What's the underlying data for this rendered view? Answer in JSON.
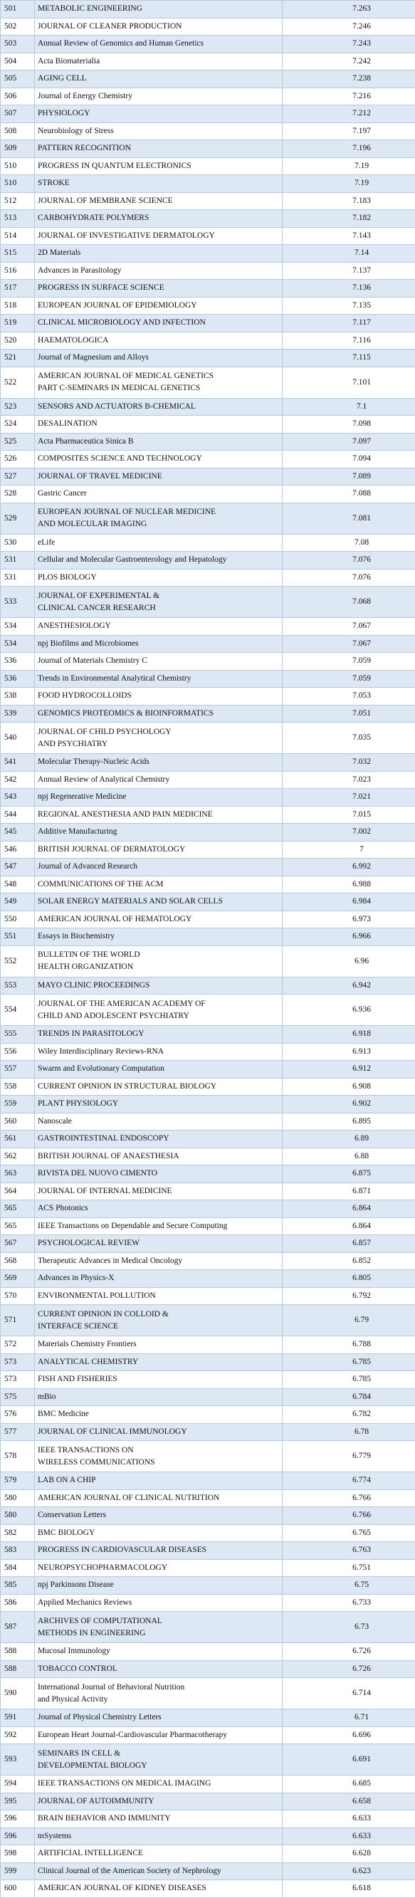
{
  "table": {
    "rows": [
      [
        501,
        "METABOLIC ENGINEERING",
        7.263
      ],
      [
        502,
        "JOURNAL OF CLEANER PRODUCTION",
        7.246
      ],
      [
        503,
        "Annual Review of Genomics and Human Genetics",
        7.243
      ],
      [
        504,
        "Acta Biomaterialia",
        7.242
      ],
      [
        505,
        "AGING CELL",
        7.238
      ],
      [
        506,
        "Journal of Energy Chemistry",
        7.216
      ],
      [
        507,
        "PHYSIOLOGY",
        7.212
      ],
      [
        508,
        "Neurobiology of Stress",
        7.197
      ],
      [
        509,
        "PATTERN RECOGNITION",
        7.196
      ],
      [
        510,
        "PROGRESS IN QUANTUM ELECTRONICS",
        7.19
      ],
      [
        510,
        "STROKE",
        7.19
      ],
      [
        512,
        "JOURNAL OF MEMBRANE SCIENCE",
        7.183
      ],
      [
        513,
        "CARBOHYDRATE POLYMERS",
        7.182
      ],
      [
        514,
        "JOURNAL OF INVESTIGATIVE DERMATOLOGY",
        7.143
      ],
      [
        515,
        "2D Materials",
        7.14
      ],
      [
        516,
        "Advances in Parasitology",
        7.137
      ],
      [
        517,
        "PROGRESS IN SURFACE SCIENCE",
        7.136
      ],
      [
        518,
        "EUROPEAN JOURNAL OF EPIDEMIOLOGY",
        7.135
      ],
      [
        519,
        "CLINICAL MICROBIOLOGY AND INFECTION",
        7.117
      ],
      [
        520,
        "HAEMATOLOGICA",
        7.116
      ],
      [
        521,
        "Journal of Magnesium and Alloys",
        7.115
      ],
      [
        522,
        "AMERICAN JOURNAL OF MEDICAL GENETICS\nPART C-SEMINARS IN MEDICAL GENETICS",
        7.101
      ],
      [
        523,
        "SENSORS AND ACTUATORS B-CHEMICAL",
        7.1
      ],
      [
        524,
        "DESALINATION",
        7.098
      ],
      [
        525,
        "Acta Pharmaceutica Sinica B",
        7.097
      ],
      [
        526,
        "COMPOSITES SCIENCE AND TECHNOLOGY",
        7.094
      ],
      [
        527,
        "JOURNAL OF TRAVEL MEDICINE",
        7.089
      ],
      [
        528,
        "Gastric Cancer",
        7.088
      ],
      [
        529,
        "EUROPEAN JOURNAL OF NUCLEAR MEDICINE\nAND MOLECULAR IMAGING",
        7.081
      ],
      [
        530,
        "eLife",
        7.08
      ],
      [
        531,
        "Cellular and Molecular Gastroenterology and Hepatology",
        7.076
      ],
      [
        531,
        "PLOS BIOLOGY",
        7.076
      ],
      [
        533,
        "JOURNAL OF EXPERIMENTAL &\nCLINICAL CANCER RESEARCH",
        7.068
      ],
      [
        534,
        "ANESTHESIOLOGY",
        7.067
      ],
      [
        534,
        "npj Biofilms and Microbiomes",
        7.067
      ],
      [
        536,
        "Journal of Materials Chemistry C",
        7.059
      ],
      [
        536,
        "Trends in Environmental Analytical Chemistry",
        7.059
      ],
      [
        538,
        "FOOD HYDROCOLLOIDS",
        7.053
      ],
      [
        539,
        "GENOMICS PROTEOMICS & BIOINFORMATICS",
        7.051
      ],
      [
        540,
        "JOURNAL OF CHILD PSYCHOLOGY\nAND PSYCHIATRY",
        7.035
      ],
      [
        541,
        "Molecular Therapy-Nucleic Acids",
        7.032
      ],
      [
        542,
        "Annual Review of Analytical Chemistry",
        7.023
      ],
      [
        543,
        "npj Regenerative Medicine",
        7.021
      ],
      [
        544,
        "REGIONAL ANESTHESIA AND PAIN MEDICINE",
        7.015
      ],
      [
        545,
        "Additive Manufacturing",
        7.002
      ],
      [
        546,
        "BRITISH JOURNAL OF DERMATOLOGY",
        7
      ],
      [
        547,
        "Journal of Advanced Research",
        6.992
      ],
      [
        548,
        "COMMUNICATIONS OF THE ACM",
        6.988
      ],
      [
        549,
        "SOLAR ENERGY MATERIALS AND SOLAR CELLS",
        6.984
      ],
      [
        550,
        "AMERICAN JOURNAL OF HEMATOLOGY",
        6.973
      ],
      [
        551,
        "Essays in Biochemistry",
        6.966
      ],
      [
        552,
        "BULLETIN OF THE WORLD\nHEALTH ORGANIZATION",
        6.96
      ],
      [
        553,
        "MAYO CLINIC PROCEEDINGS",
        6.942
      ],
      [
        554,
        "JOURNAL OF THE AMERICAN ACADEMY OF\nCHILD AND ADOLESCENT PSYCHIATRY",
        6.936
      ],
      [
        555,
        "TRENDS IN PARASITOLOGY",
        6.918
      ],
      [
        556,
        "Wiley Interdisciplinary Reviews-RNA",
        6.913
      ],
      [
        557,
        "Swarm and Evolutionary Computation",
        6.912
      ],
      [
        558,
        "CURRENT OPINION IN STRUCTURAL BIOLOGY",
        6.908
      ],
      [
        559,
        "PLANT PHYSIOLOGY",
        6.902
      ],
      [
        560,
        "Nanoscale",
        6.895
      ],
      [
        561,
        "GASTROINTESTINAL ENDOSCOPY",
        6.89
      ],
      [
        562,
        "BRITISH JOURNAL OF ANAESTHESIA",
        6.88
      ],
      [
        563,
        "RIVISTA DEL NUOVO CIMENTO",
        6.875
      ],
      [
        564,
        "JOURNAL OF INTERNAL MEDICINE",
        6.871
      ],
      [
        565,
        "ACS Photonics",
        6.864
      ],
      [
        565,
        "IEEE Transactions on Dependable and Secure Computing",
        6.864
      ],
      [
        567,
        "PSYCHOLOGICAL REVIEW",
        6.857
      ],
      [
        568,
        "Therapeutic Advances in Medical Oncology",
        6.852
      ],
      [
        569,
        "Advances in Physics-X",
        6.805
      ],
      [
        570,
        "ENVIRONMENTAL POLLUTION",
        6.792
      ],
      [
        571,
        "CURRENT OPINION IN COLLOID &\nINTERFACE SCIENCE",
        6.79
      ],
      [
        572,
        "Materials Chemistry Frontiers",
        6.788
      ],
      [
        573,
        "ANALYTICAL CHEMISTRY",
        6.785
      ],
      [
        573,
        "FISH AND FISHERIES",
        6.785
      ],
      [
        575,
        "mBio",
        6.784
      ],
      [
        576,
        "BMC Medicine",
        6.782
      ],
      [
        577,
        "JOURNAL OF CLINICAL IMMUNOLOGY",
        6.78
      ],
      [
        578,
        "IEEE TRANSACTIONS ON\nWIRELESS COMMUNICATIONS",
        6.779
      ],
      [
        579,
        "LAB ON A CHIP",
        6.774
      ],
      [
        580,
        "AMERICAN JOURNAL OF CLINICAL NUTRITION",
        6.766
      ],
      [
        580,
        "Conservation Letters",
        6.766
      ],
      [
        582,
        "BMC BIOLOGY",
        6.765
      ],
      [
        583,
        "PROGRESS IN CARDIOVASCULAR DISEASES",
        6.763
      ],
      [
        584,
        "NEUROPSYCHOPHARMACOLOGY",
        6.751
      ],
      [
        585,
        "npj Parkinsons Disease",
        6.75
      ],
      [
        586,
        "Applied Mechanics Reviews",
        6.733
      ],
      [
        587,
        "ARCHIVES OF COMPUTATIONAL\nMETHODS IN ENGINEERING",
        6.73
      ],
      [
        588,
        "Mucosal Immunology",
        6.726
      ],
      [
        588,
        "TOBACCO CONTROL",
        6.726
      ],
      [
        590,
        "International Journal of Behavioral Nutrition\nand Physical Activity",
        6.714
      ],
      [
        591,
        "Journal of Physical Chemistry Letters",
        6.71
      ],
      [
        592,
        "European Heart Journal-Cardiovascular Pharmacotherapy",
        6.696
      ],
      [
        593,
        "SEMINARS IN CELL &\nDEVELOPMENTAL BIOLOGY",
        6.691
      ],
      [
        594,
        "IEEE TRANSACTIONS ON MEDICAL IMAGING",
        6.685
      ],
      [
        595,
        "JOURNAL OF AUTOIMMUNITY",
        6.658
      ],
      [
        596,
        "BRAIN BEHAVIOR AND IMMUNITY",
        6.633
      ],
      [
        596,
        "mSystems",
        6.633
      ],
      [
        598,
        "ARTIFICIAL INTELLIGENCE",
        6.628
      ],
      [
        599,
        "Clinical Journal of the American Society of Nephrology",
        6.623
      ],
      [
        600,
        "AMERICAN JOURNAL OF KIDNEY DISEASES",
        6.618
      ]
    ]
  }
}
